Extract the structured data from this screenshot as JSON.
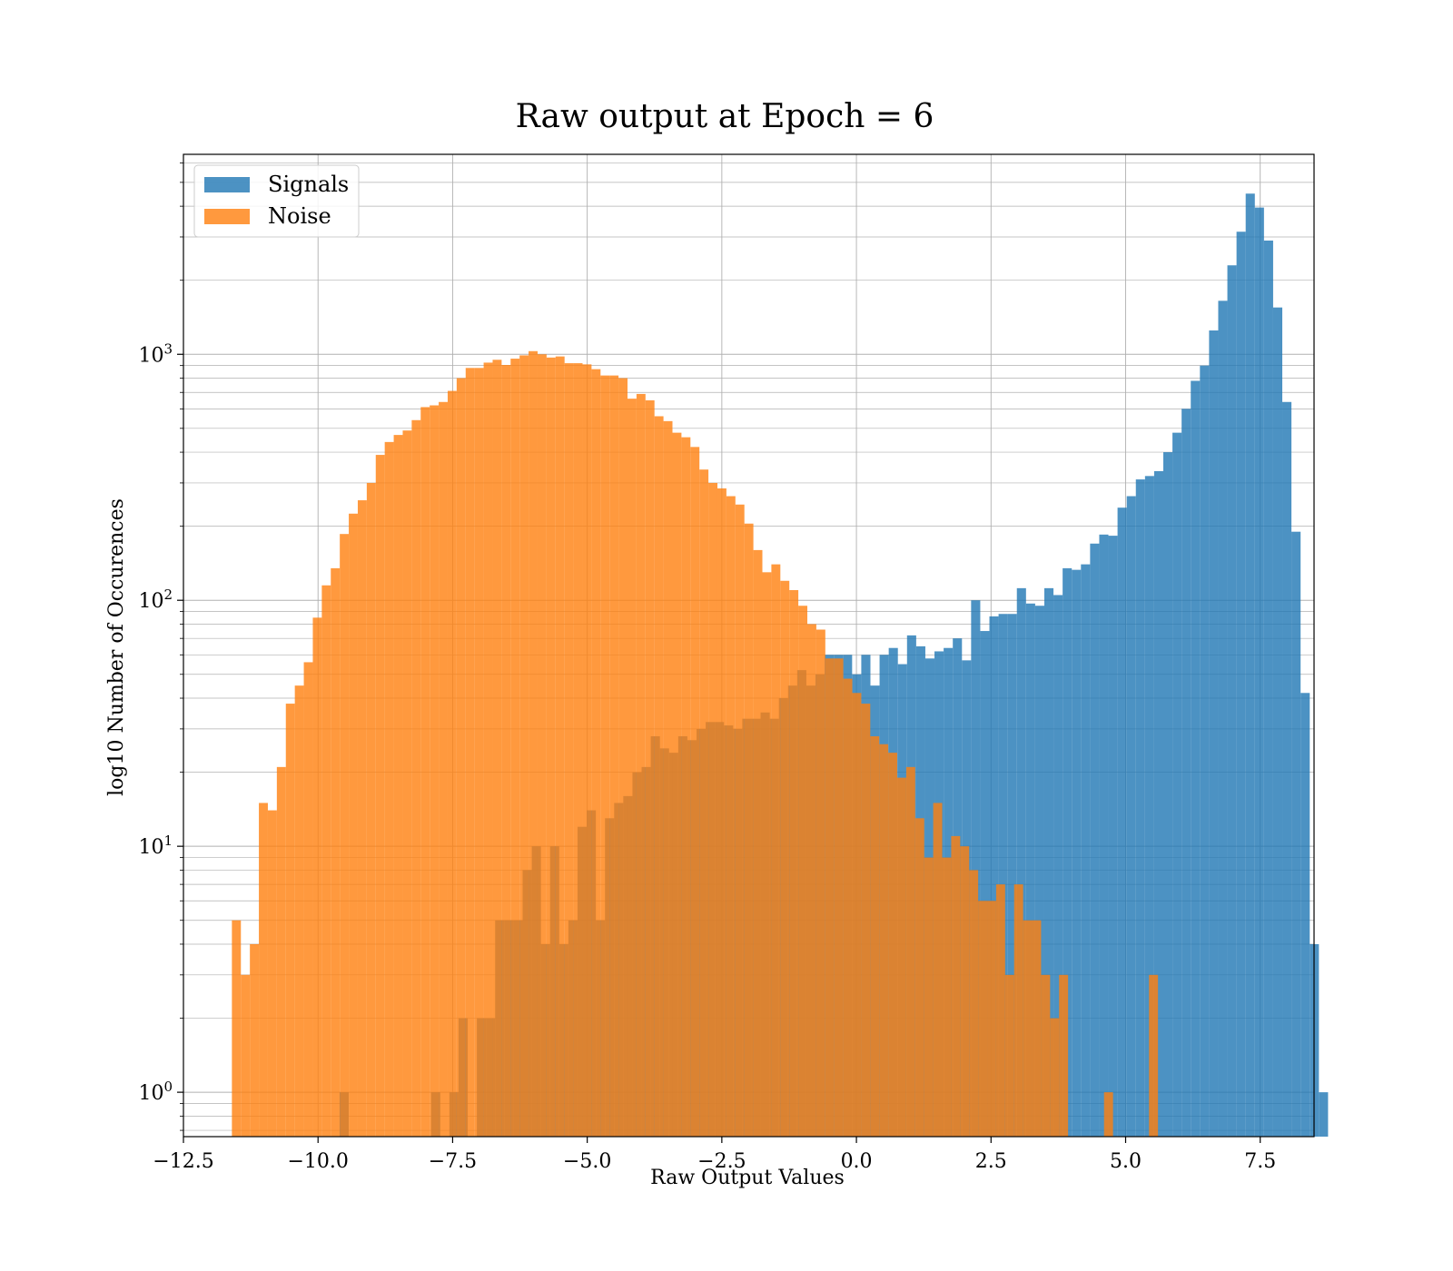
{
  "chart_data": {
    "type": "histogram",
    "title": "Raw output at Epoch = 6",
    "xlabel": "Raw Output Values",
    "ylabel": "log10 Number of Occurences",
    "xlim": [
      -12.5,
      8.5
    ],
    "ylim": [
      0.66,
      6500
    ],
    "yscale": "log",
    "grid": true,
    "legend_position": "upper-left",
    "xticks": [
      -12.5,
      -10.0,
      -7.5,
      -5.0,
      -2.5,
      0.0,
      2.5,
      5.0,
      7.5
    ],
    "xtick_labels": [
      "−12.5",
      "−10.0",
      "−7.5",
      "−5.0",
      "−2.5",
      "0.0",
      "2.5",
      "5.0",
      "7.5"
    ],
    "yticks": [
      {
        "value": 1,
        "base": "10",
        "exp": "0"
      },
      {
        "value": 10,
        "base": "10",
        "exp": "1"
      },
      {
        "value": 100,
        "base": "10",
        "exp": "2"
      },
      {
        "value": 1000,
        "base": "10",
        "exp": "3"
      }
    ],
    "series": [
      {
        "name": "Signals",
        "color": "#1f77b4",
        "opacity": 0.8,
        "bin_start": -9.6,
        "bin_width": 0.17,
        "counts": [
          1,
          0,
          0,
          0,
          0,
          0,
          0,
          0,
          0,
          0,
          1,
          0,
          1,
          2,
          0,
          2,
          2,
          5,
          5,
          5,
          8,
          10,
          4,
          10,
          4,
          5,
          12,
          14,
          5,
          13,
          15,
          16,
          20,
          21,
          28,
          25,
          24,
          28,
          27,
          30,
          32,
          32,
          31,
          30,
          33,
          33,
          35,
          33,
          40,
          45,
          52,
          45,
          50,
          60,
          60,
          60,
          50,
          60,
          45,
          60,
          64,
          55,
          72,
          65,
          58,
          62,
          64,
          70,
          57,
          100,
          75,
          86,
          88,
          88,
          112,
          97,
          95,
          112,
          105,
          135,
          133,
          140,
          170,
          185,
          183,
          238,
          265,
          310,
          320,
          335,
          400,
          480,
          600,
          780,
          900,
          1250,
          1650,
          2300,
          3150,
          4500,
          3950,
          2900,
          1550,
          640,
          190,
          42,
          4,
          1
        ]
      },
      {
        "name": "Noise",
        "color": "#ff7f0e",
        "opacity": 0.8,
        "bin_start": -11.6,
        "bin_width": 0.167,
        "counts": [
          5,
          3,
          4,
          15,
          14,
          21,
          38,
          45,
          56,
          85,
          115,
          135,
          186,
          225,
          255,
          300,
          390,
          440,
          470,
          490,
          540,
          610,
          620,
          640,
          710,
          800,
          880,
          880,
          925,
          950,
          905,
          960,
          990,
          1030,
          1000,
          970,
          980,
          920,
          920,
          910,
          870,
          820,
          820,
          800,
          660,
          690,
          650,
          560,
          535,
          480,
          460,
          420,
          340,
          300,
          285,
          265,
          245,
          205,
          160,
          130,
          140,
          120,
          110,
          95,
          80,
          76,
          58,
          58,
          48,
          42,
          38,
          28,
          26,
          24,
          19,
          21,
          13,
          9,
          15,
          9,
          11,
          10,
          8,
          6,
          6,
          7,
          3,
          7,
          5,
          5,
          3,
          2,
          3,
          0,
          0,
          0,
          0,
          1,
          0,
          0,
          0,
          0,
          3,
          0,
          0,
          0,
          0,
          0,
          0,
          0,
          0,
          0,
          0,
          0,
          0,
          0,
          0,
          0,
          0,
          0,
          0
        ]
      }
    ]
  }
}
